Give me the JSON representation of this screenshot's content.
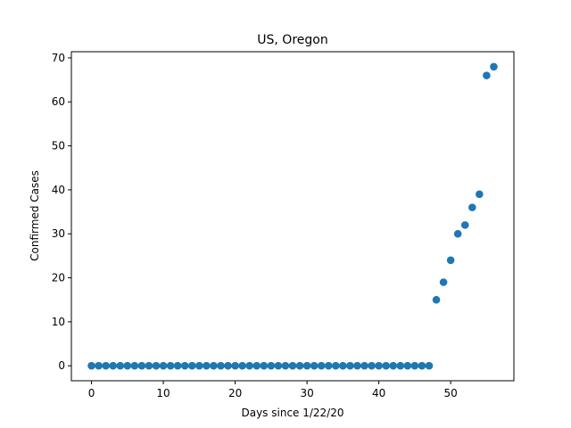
{
  "chart_data": {
    "type": "scatter",
    "title": "US, Oregon",
    "xlabel": "Days since 1/22/20",
    "ylabel": "Confirmed Cases",
    "xlim": [
      -2.8,
      58.8
    ],
    "ylim": [
      -3.4,
      71.4
    ],
    "x_ticks": [
      0,
      10,
      20,
      30,
      40,
      50
    ],
    "y_ticks": [
      0,
      10,
      20,
      30,
      40,
      50,
      60,
      70
    ],
    "grid": false,
    "marker_color": "#1f77b4",
    "series": [
      {
        "x": [
          0,
          1,
          2,
          3,
          4,
          5,
          6,
          7,
          8,
          9,
          10,
          11,
          12,
          13,
          14,
          15,
          16,
          17,
          18,
          19,
          20,
          21,
          22,
          23,
          24,
          25,
          26,
          27,
          28,
          29,
          30,
          31,
          32,
          33,
          34,
          35,
          36,
          37,
          38,
          39,
          40,
          41,
          42,
          43,
          44,
          45,
          46,
          47,
          48,
          49,
          50,
          51,
          52,
          53,
          54,
          55,
          56
        ],
        "y": [
          0,
          0,
          0,
          0,
          0,
          0,
          0,
          0,
          0,
          0,
          0,
          0,
          0,
          0,
          0,
          0,
          0,
          0,
          0,
          0,
          0,
          0,
          0,
          0,
          0,
          0,
          0,
          0,
          0,
          0,
          0,
          0,
          0,
          0,
          0,
          0,
          0,
          0,
          0,
          0,
          0,
          0,
          0,
          0,
          0,
          0,
          0,
          0,
          15,
          19,
          24,
          30,
          32,
          36,
          39,
          66,
          68
        ]
      }
    ]
  }
}
